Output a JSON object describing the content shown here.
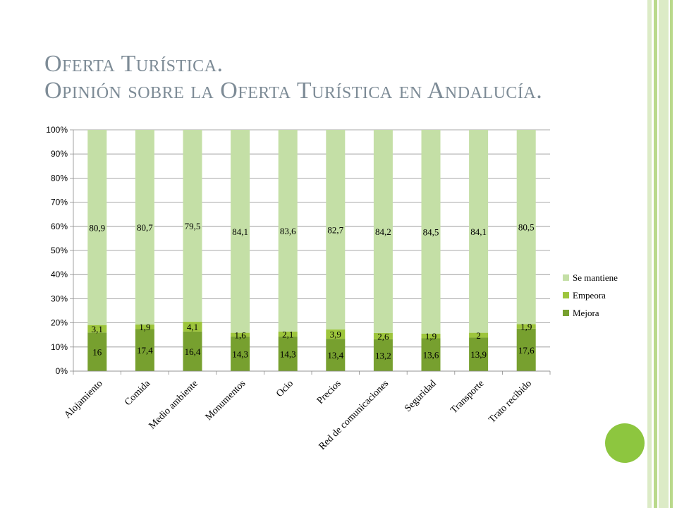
{
  "slide": {
    "title_line1": "Oferta Turística.",
    "title_line2": "Opinión sobre la Oferta Turística en Andalucía.",
    "colors": {
      "title": "#7d8b96",
      "accent_stripe_light": "#dcebc6",
      "accent_stripe_mid": "#b9d98b",
      "accent_circle": "#8dc63f"
    }
  },
  "chart_data": {
    "type": "bar",
    "stacked": "percent",
    "categories": [
      "Alojamiento",
      "Comida",
      "Medio ambiente",
      "Monumentos",
      "Ocio",
      "Precios",
      "Red de comunicaciones",
      "Seguridad",
      "Transporte",
      "Trato recibido"
    ],
    "series": [
      {
        "name": "Mejora",
        "color": "#77a02f",
        "values": [
          16,
          17.4,
          16.4,
          14.3,
          14.3,
          13.4,
          13.2,
          13.6,
          13.9,
          17.6
        ],
        "labels": [
          "16",
          "17,4",
          "16,4",
          "14,3",
          "14,3",
          "13,4",
          "13,2",
          "13,6",
          "13,9",
          "17,6"
        ]
      },
      {
        "name": "Empeora",
        "color": "#9dc53c",
        "values": [
          3.1,
          1.9,
          4.1,
          1.6,
          2.1,
          3.9,
          2.6,
          1.9,
          2,
          1.9
        ],
        "labels": [
          "3,1",
          "1,9",
          "4,1",
          "1,6",
          "2,1",
          "3,9",
          "2,6",
          "1,9",
          "2",
          "1,9"
        ]
      },
      {
        "name": "Se mantiene",
        "color": "#c4dfa6",
        "values": [
          80.9,
          80.7,
          79.5,
          84.1,
          83.6,
          82.7,
          84.2,
          84.5,
          84.1,
          80.5
        ],
        "labels": [
          "80,9",
          "80,7",
          "79,5",
          "84,1",
          "83,6",
          "82,7",
          "84,2",
          "84,5",
          "84,1",
          "80,5"
        ]
      }
    ],
    "yticks": [
      "0%",
      "10%",
      "20%",
      "30%",
      "40%",
      "50%",
      "60%",
      "70%",
      "80%",
      "90%",
      "100%"
    ],
    "ylim": [
      0,
      100
    ],
    "grid": "horizontal",
    "legend": "right",
    "legend_order": [
      "Se mantiene",
      "Empeora",
      "Mejora"
    ]
  }
}
